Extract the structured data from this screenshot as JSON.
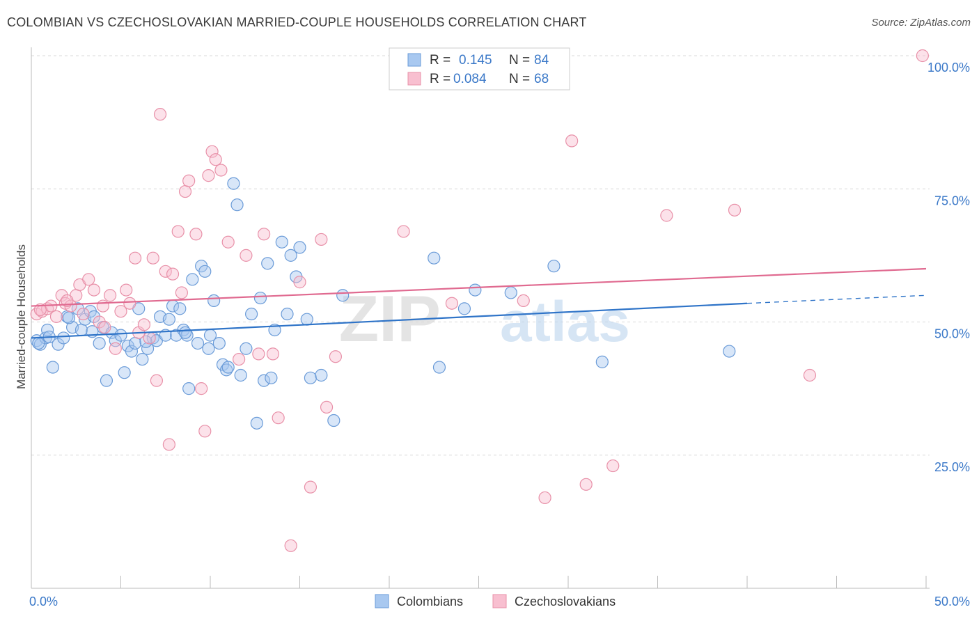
{
  "chart_data": {
    "type": "scatter",
    "title": "COLOMBIAN VS CZECHOSLOVAKIAN MARRIED-COUPLE HOUSEHOLDS CORRELATION CHART",
    "source": "Source: ZipAtlas.com",
    "xlabel": "",
    "ylabel": "Married-couple Households",
    "xlim": [
      0,
      50
    ],
    "ylim": [
      0,
      100
    ],
    "x_tick_labels": [
      {
        "value": 0,
        "label": "0.0%"
      },
      {
        "value": 50,
        "label": "50.0%"
      }
    ],
    "y_tick_labels": [
      {
        "value": 25,
        "label": "25.0%"
      },
      {
        "value": 50,
        "label": "50.0%"
      },
      {
        "value": 75,
        "label": "75.0%"
      },
      {
        "value": 100,
        "label": "100.0%"
      }
    ],
    "grid": true,
    "watermark": {
      "zip": "ZIP",
      "atlas": "atlas"
    },
    "legend_top": [
      {
        "r_label": "R =",
        "r_value": "0.145",
        "n_label": "N =",
        "n_value": "84"
      },
      {
        "r_label": "R =",
        "r_value": "0.084",
        "n_label": "N =",
        "n_value": "68"
      }
    ],
    "colors": {
      "blue_fill": "#a8c8f0",
      "blue_stroke": "#6a9bd8",
      "blue_line": "#2f74c8",
      "pink_fill": "#f8bfd0",
      "pink_stroke": "#e890a8",
      "pink_line": "#e06a90",
      "accent_text": "#3a78c8",
      "grid": "#d8d8d8"
    },
    "series": [
      {
        "name": "Colombians",
        "color": "blue",
        "trend": {
          "x0": 0,
          "y0": 47.0,
          "x1": 40,
          "y1": 53.5,
          "dash_to_x": 50,
          "dash_to_y": 55.0
        },
        "points": [
          [
            0.3,
            46.5
          ],
          [
            0.5,
            45.8
          ],
          [
            0.8,
            47.0
          ],
          [
            0.9,
            48.5
          ],
          [
            1.2,
            41.5
          ],
          [
            1.5,
            45.8
          ],
          [
            1.8,
            47.0
          ],
          [
            2.0,
            51.0
          ],
          [
            2.3,
            49.0
          ],
          [
            2.6,
            52.5
          ],
          [
            2.8,
            48.5
          ],
          [
            3.0,
            50.5
          ],
          [
            3.3,
            52.0
          ],
          [
            3.5,
            51.0
          ],
          [
            3.8,
            46.0
          ],
          [
            4.0,
            49.0
          ],
          [
            4.2,
            39.0
          ],
          [
            4.5,
            48.0
          ],
          [
            4.7,
            46.5
          ],
          [
            5.0,
            47.5
          ],
          [
            5.2,
            40.5
          ],
          [
            5.4,
            45.5
          ],
          [
            5.6,
            44.5
          ],
          [
            5.8,
            46.0
          ],
          [
            6.0,
            52.5
          ],
          [
            6.2,
            43.0
          ],
          [
            6.5,
            45.0
          ],
          [
            6.8,
            47.0
          ],
          [
            7.0,
            46.5
          ],
          [
            7.2,
            51.0
          ],
          [
            7.5,
            47.5
          ],
          [
            7.7,
            50.5
          ],
          [
            7.9,
            53.0
          ],
          [
            8.1,
            47.5
          ],
          [
            8.3,
            52.5
          ],
          [
            8.5,
            48.5
          ],
          [
            8.7,
            47.5
          ],
          [
            8.8,
            37.5
          ],
          [
            9.0,
            58.0
          ],
          [
            9.3,
            46.0
          ],
          [
            9.5,
            60.5
          ],
          [
            9.7,
            59.5
          ],
          [
            9.9,
            45.0
          ],
          [
            10.0,
            47.5
          ],
          [
            10.2,
            54.0
          ],
          [
            10.5,
            46.0
          ],
          [
            10.7,
            42.0
          ],
          [
            10.9,
            41.0
          ],
          [
            11.0,
            41.5
          ],
          [
            11.3,
            76.0
          ],
          [
            11.5,
            72.0
          ],
          [
            11.7,
            40.0
          ],
          [
            12.0,
            45.0
          ],
          [
            12.3,
            51.5
          ],
          [
            12.6,
            31.0
          ],
          [
            12.8,
            54.5
          ],
          [
            13.0,
            39.0
          ],
          [
            13.2,
            61.0
          ],
          [
            13.4,
            39.5
          ],
          [
            13.6,
            48.5
          ],
          [
            14.0,
            65.0
          ],
          [
            14.3,
            51.5
          ],
          [
            14.5,
            62.5
          ],
          [
            14.8,
            58.5
          ],
          [
            15.0,
            64.0
          ],
          [
            15.4,
            50.5
          ],
          [
            15.6,
            39.5
          ],
          [
            16.2,
            40.0
          ],
          [
            16.9,
            31.5
          ],
          [
            17.4,
            55.0
          ],
          [
            22.5,
            62.0
          ],
          [
            22.8,
            41.5
          ],
          [
            24.2,
            52.5
          ],
          [
            24.8,
            56.0
          ],
          [
            26.8,
            55.5
          ],
          [
            29.2,
            60.5
          ],
          [
            31.9,
            42.5
          ],
          [
            39.0,
            44.5
          ],
          [
            0.4,
            46.0
          ],
          [
            1.0,
            47.2
          ],
          [
            2.1,
            50.8
          ],
          [
            3.4,
            48.2
          ],
          [
            6.4,
            46.3
          ],
          [
            8.6,
            48.0
          ]
        ]
      },
      {
        "name": "Czechoslovakians",
        "color": "pink",
        "trend": {
          "x0": 0,
          "y0": 53.0,
          "x1": 50,
          "y1": 60.0
        },
        "points": [
          [
            0.3,
            51.5
          ],
          [
            0.6,
            52.0
          ],
          [
            0.9,
            52.5
          ],
          [
            1.1,
            53.0
          ],
          [
            1.4,
            51.0
          ],
          [
            1.7,
            55.0
          ],
          [
            1.9,
            53.5
          ],
          [
            2.2,
            53.0
          ],
          [
            2.5,
            55.0
          ],
          [
            2.7,
            57.0
          ],
          [
            2.9,
            51.5
          ],
          [
            3.2,
            58.0
          ],
          [
            3.5,
            56.0
          ],
          [
            3.8,
            50.0
          ],
          [
            4.1,
            49.0
          ],
          [
            4.4,
            55.0
          ],
          [
            4.7,
            45.0
          ],
          [
            5.0,
            52.0
          ],
          [
            5.3,
            56.0
          ],
          [
            5.5,
            53.5
          ],
          [
            5.8,
            62.0
          ],
          [
            6.0,
            48.0
          ],
          [
            6.3,
            49.5
          ],
          [
            6.6,
            47.0
          ],
          [
            6.8,
            62.0
          ],
          [
            7.0,
            39.0
          ],
          [
            7.2,
            89.0
          ],
          [
            7.5,
            59.5
          ],
          [
            7.7,
            27.0
          ],
          [
            7.9,
            59.0
          ],
          [
            8.2,
            67.0
          ],
          [
            8.4,
            55.5
          ],
          [
            8.6,
            74.5
          ],
          [
            8.8,
            76.5
          ],
          [
            9.2,
            66.5
          ],
          [
            9.5,
            37.5
          ],
          [
            9.7,
            29.5
          ],
          [
            9.9,
            77.5
          ],
          [
            10.1,
            82.0
          ],
          [
            10.3,
            80.5
          ],
          [
            10.6,
            78.5
          ],
          [
            11.0,
            65.0
          ],
          [
            11.6,
            43.0
          ],
          [
            12.0,
            62.5
          ],
          [
            12.7,
            44.0
          ],
          [
            13.0,
            66.5
          ],
          [
            13.5,
            44.0
          ],
          [
            13.8,
            32.0
          ],
          [
            14.5,
            8.0
          ],
          [
            15.0,
            57.5
          ],
          [
            15.6,
            19.0
          ],
          [
            16.2,
            65.5
          ],
          [
            16.5,
            34.0
          ],
          [
            17.0,
            43.5
          ],
          [
            20.8,
            67.0
          ],
          [
            23.5,
            53.5
          ],
          [
            27.5,
            54.0
          ],
          [
            28.7,
            17.0
          ],
          [
            30.2,
            84.0
          ],
          [
            31.0,
            19.5
          ],
          [
            32.5,
            23.0
          ],
          [
            35.5,
            70.0
          ],
          [
            39.3,
            71.0
          ],
          [
            43.5,
            40.0
          ],
          [
            49.8,
            100.0
          ],
          [
            0.5,
            52.3
          ],
          [
            2.0,
            54.0
          ],
          [
            4.0,
            53.0
          ]
        ]
      }
    ]
  }
}
